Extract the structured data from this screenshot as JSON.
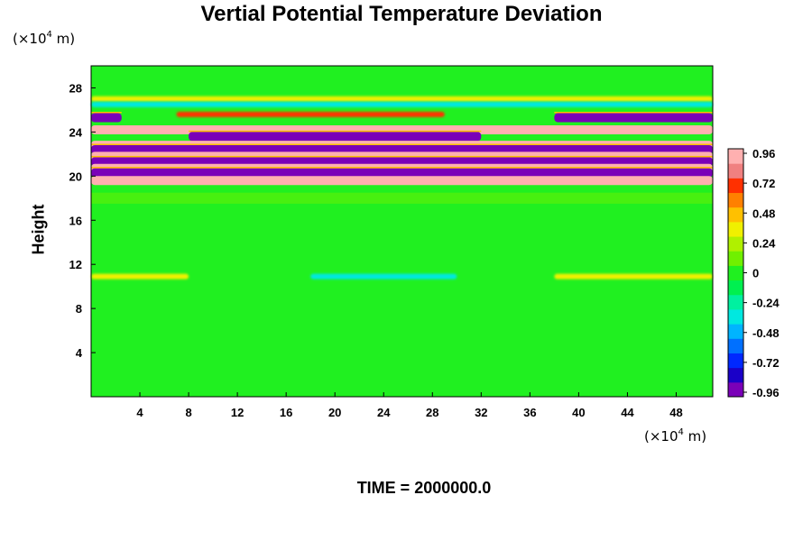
{
  "chart_data": {
    "type": "heatmap",
    "title": "Vertial Potential Temperature Deviation",
    "x_unit": "(×10",
    "x_unit_exp": "4",
    "x_unit_tail": " m)",
    "y_unit": "(×10",
    "y_unit_exp": "4",
    "y_unit_tail": " m)",
    "xlabel": "",
    "ylabel": "Height",
    "xlim": [
      0,
      51
    ],
    "ylim": [
      0,
      30
    ],
    "x_ticks": [
      "4",
      "8",
      "12",
      "16",
      "20",
      "24",
      "28",
      "32",
      "36",
      "40",
      "44",
      "48"
    ],
    "y_ticks": [
      "4",
      "8",
      "12",
      "16",
      "20",
      "24",
      "28"
    ],
    "colorbar": {
      "min": -1.0,
      "max": 1.0,
      "tick_labels": [
        "0.96",
        "0.72",
        "0.48",
        "0.24",
        "0",
        "-0.24",
        "-0.48",
        "-0.72",
        "-0.96"
      ],
      "colors": [
        "#7a00b8",
        "#1a00c8",
        "#0028ff",
        "#0070ff",
        "#00b4ff",
        "#00e8e0",
        "#00f0a0",
        "#00f050",
        "#20f020",
        "#70f000",
        "#b0f000",
        "#f0f000",
        "#ffc000",
        "#ff8000",
        "#ff3000",
        "#f08080",
        "#ffb0b0"
      ]
    },
    "field_description": "Background near zero (green); strong alternating positive/negative bands between height 18 and 27; weak disturbance line near height 11",
    "bands": [
      {
        "y_center": 25.3,
        "value": -0.9,
        "x_range": [
          0,
          2.5
        ]
      },
      {
        "y_center": 25.3,
        "value": -0.9,
        "x_range": [
          38,
          51
        ]
      },
      {
        "y_center": 25.6,
        "value": 0.7,
        "x_range": [
          7,
          29
        ]
      },
      {
        "y_center": 24.2,
        "value": 0.97,
        "x_range": [
          0,
          51
        ]
      },
      {
        "y_center": 23.6,
        "value": -0.97,
        "x_range": [
          8,
          32
        ]
      },
      {
        "y_center": 22.8,
        "value": 0.97,
        "x_range": [
          0,
          51
        ]
      },
      {
        "y_center": 22.4,
        "value": -0.97,
        "x_range": [
          0,
          51
        ]
      },
      {
        "y_center": 21.8,
        "value": 0.97,
        "x_range": [
          0,
          51
        ]
      },
      {
        "y_center": 21.3,
        "value": -0.97,
        "x_range": [
          0,
          51
        ]
      },
      {
        "y_center": 20.7,
        "value": 0.97,
        "x_range": [
          0,
          51
        ]
      },
      {
        "y_center": 20.3,
        "value": -0.97,
        "x_range": [
          0,
          51
        ]
      },
      {
        "y_center": 19.6,
        "value": 0.97,
        "x_range": [
          0,
          51
        ]
      },
      {
        "y_center": 27.0,
        "value": 0.3,
        "x_range": [
          0,
          51
        ]
      },
      {
        "y_center": 26.5,
        "value": -0.3,
        "x_range": [
          0,
          51
        ]
      },
      {
        "y_center": 10.9,
        "value": 0.35,
        "x_range": [
          0,
          8
        ]
      },
      {
        "y_center": 10.9,
        "value": -0.3,
        "x_range": [
          18,
          30
        ]
      },
      {
        "y_center": 10.9,
        "value": 0.35,
        "x_range": [
          38,
          51
        ]
      }
    ]
  },
  "footer": {
    "time_label": "TIME = 2000000.0"
  }
}
